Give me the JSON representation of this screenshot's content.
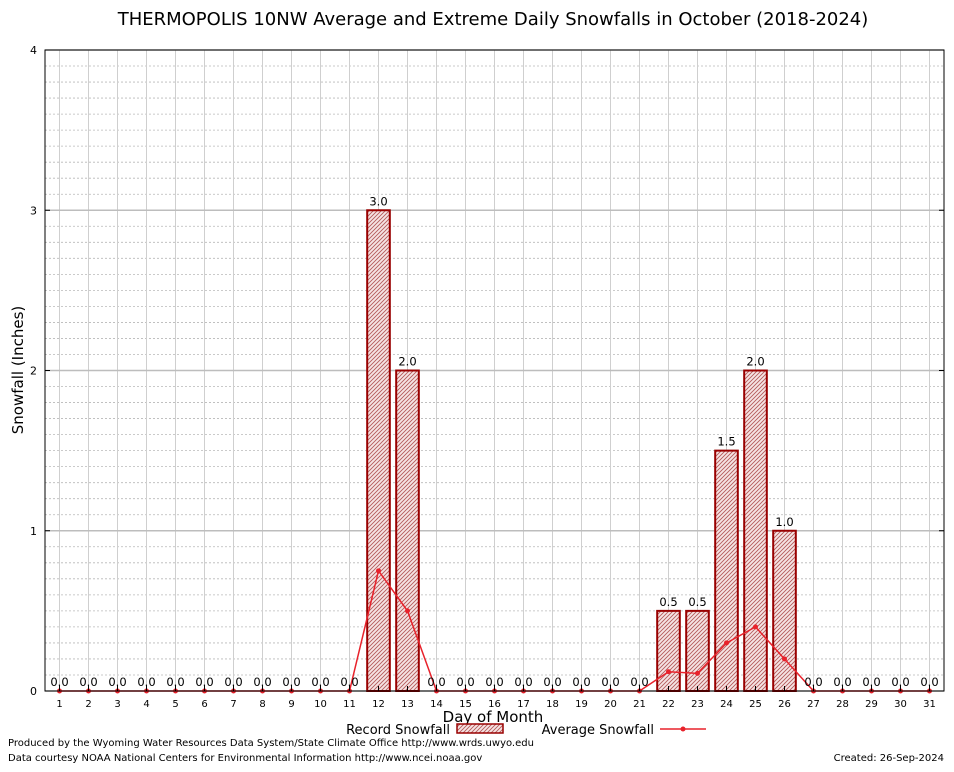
{
  "chart_data": {
    "type": "bar",
    "title": "THERMOPOLIS 10NW Average and Extreme Daily Snowfalls in October (2018-2024)",
    "xlabel": "Day of Month",
    "ylabel": "Snowfall (Inches)",
    "ylim": [
      0,
      4
    ],
    "yticks": [
      "0",
      "1",
      "2",
      "3",
      "4"
    ],
    "categories": [
      "1",
      "2",
      "3",
      "4",
      "5",
      "6",
      "7",
      "8",
      "9",
      "10",
      "11",
      "12",
      "13",
      "14",
      "15",
      "16",
      "17",
      "18",
      "19",
      "20",
      "21",
      "22",
      "23",
      "24",
      "25",
      "26",
      "27",
      "28",
      "29",
      "30",
      "31"
    ],
    "grid": true,
    "legend_position": "bottom",
    "series": [
      {
        "name": "Record Snowfall",
        "kind": "bar",
        "color": "#990000",
        "values": [
          0,
          0,
          0,
          0,
          0,
          0,
          0,
          0,
          0,
          0,
          0,
          3.0,
          2.0,
          0,
          0,
          0,
          0,
          0,
          0,
          0,
          0,
          0.5,
          0.5,
          1.5,
          2.0,
          1.0,
          0,
          0,
          0,
          0,
          0
        ],
        "value_labels": [
          "0.0",
          "0.0",
          "0.0",
          "0.0",
          "0.0",
          "0.0",
          "0.0",
          "0.0",
          "0.0",
          "0.0",
          "0.0",
          "3.0",
          "2.0",
          "0.0",
          "0.0",
          "0.0",
          "0.0",
          "0.0",
          "0.0",
          "0.0",
          "0.0",
          "0.5",
          "0.5",
          "1.5",
          "2.0",
          "1.0",
          "0.0",
          "0.0",
          "0.0",
          "0.0",
          "0.0"
        ]
      },
      {
        "name": "Average Snowfall",
        "kind": "line",
        "color": "#e8222b",
        "values": [
          0,
          0,
          0,
          0,
          0,
          0,
          0,
          0,
          0,
          0,
          0,
          0.75,
          0.5,
          0,
          0,
          0,
          0,
          0,
          0,
          0,
          0,
          0.12,
          0.11,
          0.3,
          0.4,
          0.2,
          0,
          0,
          0,
          0,
          0
        ]
      }
    ]
  },
  "footer": {
    "produced_by": "Produced by the Wyoming Water Resources Data System/State Climate Office http://www.wrds.uwyo.edu",
    "courtesy": "Data courtesy NOAA National Centers for Environmental Information http://www.ncei.noaa.gov",
    "created": "Created:  26-Sep-2024"
  }
}
